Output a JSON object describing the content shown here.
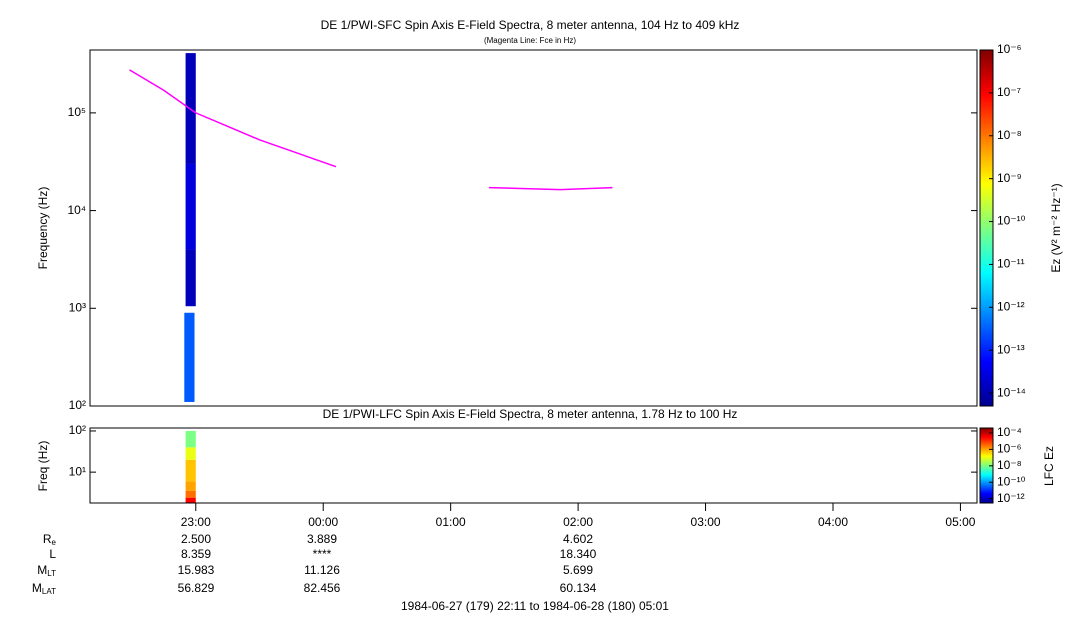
{
  "chart_data": [
    {
      "type": "spectrogram",
      "title": "DE 1/PWI-SFC  Spin Axis E-Field Spectra, 8 meter antenna, 104 Hz to 409 kHz",
      "subtitle": "(Magenta Line: Fce in Hz)",
      "ylabel": "Frequency (Hz)",
      "zlabel": "Ez (V² m⁻² Hz⁻¹)",
      "xlim": [
        22.17,
        29.13
      ],
      "ylim": [
        100,
        440000
      ],
      "log_y": true,
      "yticks": [
        {
          "value": 100,
          "label": "10²"
        },
        {
          "value": 1000,
          "label": "10³"
        },
        {
          "value": 10000,
          "label": "10⁴"
        },
        {
          "value": 100000,
          "label": "10⁵"
        }
      ],
      "zlim": [
        5e-15,
        1e-06
      ],
      "log_z": true,
      "colormap": "jet",
      "zticks": [
        {
          "value": 1e-06,
          "label": "10⁻⁶"
        },
        {
          "value": 1e-07,
          "label": "10⁻⁷"
        },
        {
          "value": 1e-08,
          "label": "10⁻⁸"
        },
        {
          "value": 1e-09,
          "label": "10⁻⁹"
        },
        {
          "value": 1e-10,
          "label": "10⁻¹⁰"
        },
        {
          "value": 1e-11,
          "label": "10⁻¹¹"
        },
        {
          "value": 1e-12,
          "label": "10⁻¹²"
        },
        {
          "value": 1e-13,
          "label": "10⁻¹³"
        },
        {
          "value": 1e-14,
          "label": "10⁻¹⁴"
        }
      ],
      "cells": [
        {
          "x0": 22.91,
          "x1": 22.99,
          "y0": 110,
          "y1": 900,
          "z": 3e-13
        },
        {
          "x0": 22.92,
          "x1": 23.0,
          "y0": 1050,
          "y1": 4000,
          "z": 1.5e-14
        },
        {
          "x0": 22.92,
          "x1": 23.0,
          "y0": 4000,
          "y1": 30000,
          "z": 3e-14
        },
        {
          "x0": 22.92,
          "x1": 23.0,
          "y0": 30000,
          "y1": 409000,
          "z": 1.5e-14
        }
      ],
      "line": {
        "color": "#ff00ff",
        "x": [
          22.48,
          22.75,
          23.0,
          23.5,
          24.1,
          null,
          25.3,
          25.86,
          26.27
        ],
        "y": [
          275000,
          170000,
          100000,
          53000,
          28100,
          null,
          17200,
          16400,
          17200
        ]
      }
    },
    {
      "type": "spectrogram",
      "title": "DE 1/PWI-LFC  Spin Axis E-Field Spectra, 8 meter antenna, 1.78 Hz to 100 Hz",
      "ylabel": "Freq (Hz)",
      "zlabel": "LFC Ez",
      "xlim": [
        22.17,
        29.13
      ],
      "xticks": [
        {
          "value": 23,
          "label": "23:00"
        },
        {
          "value": 24,
          "label": "00:00"
        },
        {
          "value": 25,
          "label": "01:00"
        },
        {
          "value": 26,
          "label": "02:00"
        },
        {
          "value": 27,
          "label": "03:00"
        },
        {
          "value": 28,
          "label": "04:00"
        },
        {
          "value": 29,
          "label": "05:00"
        }
      ],
      "ylim": [
        1.78,
        118
      ],
      "log_y": true,
      "yticks": [
        {
          "value": 10,
          "label": "10¹"
        },
        {
          "value": 100,
          "label": "10²"
        }
      ],
      "zlim": [
        3e-13,
        0.0004
      ],
      "log_z": true,
      "colormap": "jet",
      "zticks": [
        {
          "value": 0.0001,
          "label": "10⁻⁴"
        },
        {
          "value": 1e-06,
          "label": "10⁻⁶"
        },
        {
          "value": 1e-08,
          "label": "10⁻⁸"
        },
        {
          "value": 1e-10,
          "label": "10⁻¹⁰"
        },
        {
          "value": 1e-12,
          "label": "10⁻¹²"
        }
      ],
      "cells": [
        {
          "x0": 22.92,
          "x1": 23.0,
          "y0": 1.78,
          "y1": 2.4,
          "z": 3e-05
        },
        {
          "x0": 22.92,
          "x1": 23.0,
          "y0": 2.4,
          "y1": 3.5,
          "z": 3e-06
        },
        {
          "x0": 22.92,
          "x1": 23.0,
          "y0": 3.5,
          "y1": 6,
          "z": 1e-06
        },
        {
          "x0": 22.92,
          "x1": 23.0,
          "y0": 6,
          "y1": 20,
          "z": 5e-07
        },
        {
          "x0": 22.92,
          "x1": 23.0,
          "y0": 20,
          "y1": 40,
          "z": 1e-07
        },
        {
          "x0": 22.92,
          "x1": 23.0,
          "y0": 40,
          "y1": 100,
          "z": 1e-08
        }
      ]
    }
  ],
  "ephemeris": {
    "rows": [
      {
        "label": "R",
        "sub": "e",
        "values": [
          "2.500",
          "3.889",
          "4.602"
        ]
      },
      {
        "label": "L",
        "values": [
          "8.359",
          "****",
          "18.340"
        ]
      },
      {
        "label": "M",
        "sub": "LT",
        "values": [
          "15.983",
          "11.126",
          "5.699"
        ]
      },
      {
        "label": "M",
        "sub": "LAT",
        "values": [
          "56.829",
          "82.456",
          "60.134"
        ]
      }
    ]
  },
  "footer": "1984-06-27 (179) 22:11 to 1984-06-28 (180) 05:01"
}
